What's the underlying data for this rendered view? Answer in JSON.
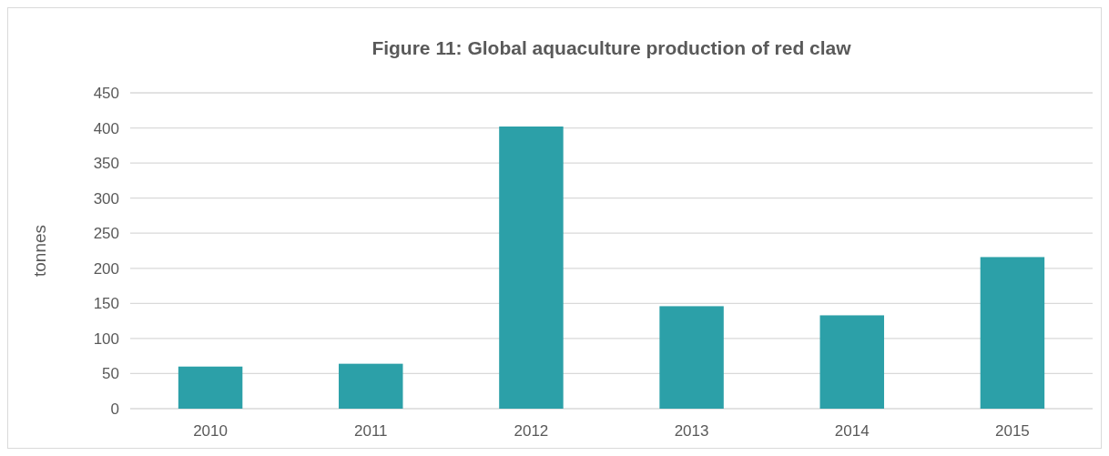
{
  "chart_data": {
    "type": "bar",
    "title": "Figure 11: Global aquaculture production of red claw",
    "ylabel": "tonnes",
    "categories": [
      "2010",
      "2011",
      "2012",
      "2013",
      "2014",
      "2015"
    ],
    "values": [
      60,
      64,
      402,
      146,
      133,
      216
    ],
    "color": "#2ca0a8",
    "ylim": [
      0,
      450
    ],
    "yticks": [
      0,
      50,
      100,
      150,
      200,
      250,
      300,
      350,
      400,
      450
    ],
    "grid": "y"
  }
}
